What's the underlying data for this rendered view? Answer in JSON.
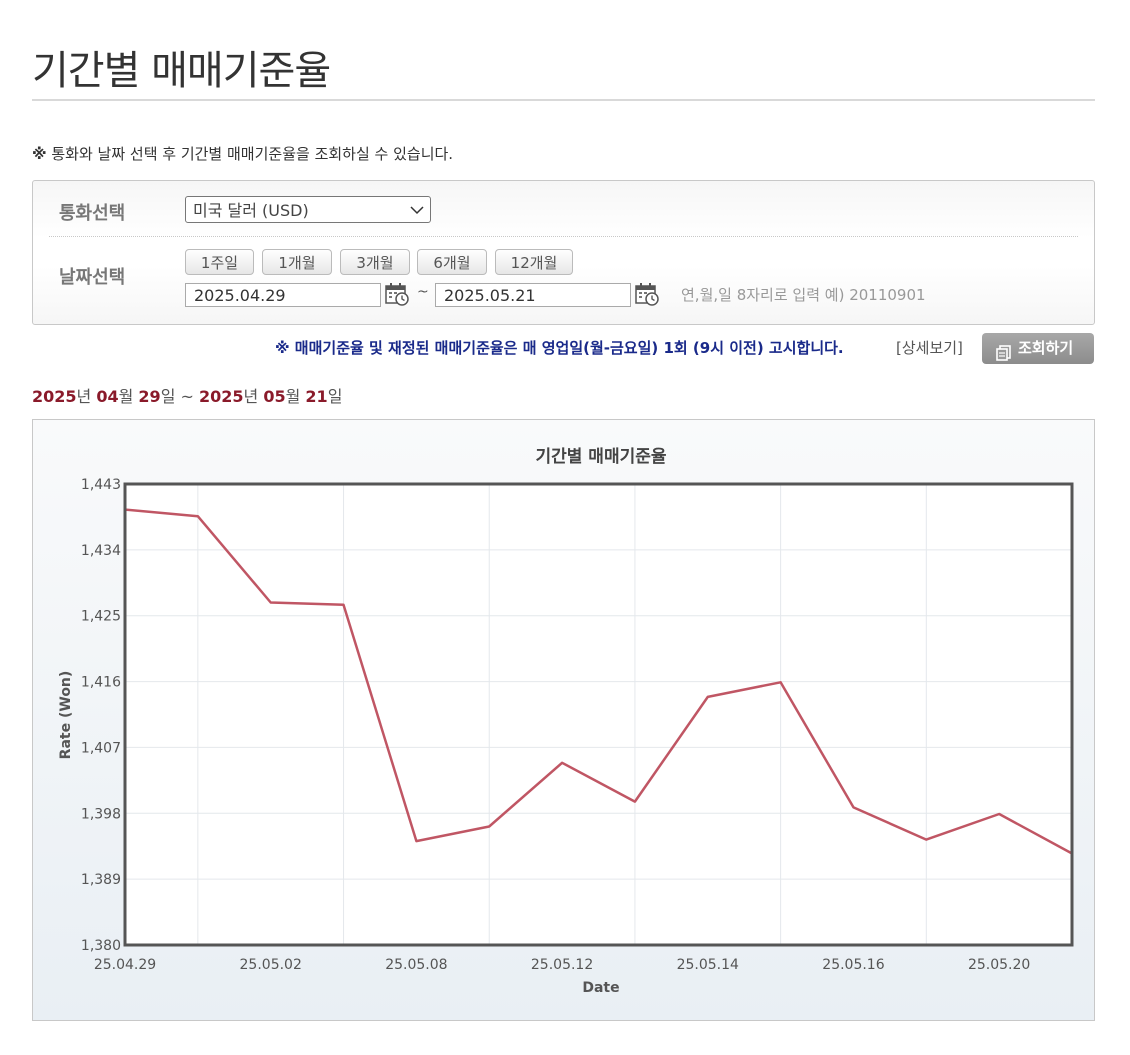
{
  "page": {
    "title": "기간별 매매기준율",
    "notice_mark": "※",
    "notice": " 통화와 날짜 선택 후 기간별 매매기준율을 조회하실 수 있습니다."
  },
  "form": {
    "currency_label": "통화선택",
    "currency_selected": "미국 달러 (USD)",
    "date_label": "날짜선택",
    "period_buttons": [
      "1주일",
      "1개월",
      "3개월",
      "6개월",
      "12개월"
    ],
    "start_date": "2025.04.29",
    "tilde": "~",
    "end_date": "2025.05.21",
    "hint": "연,월,일 8자리로 입력 예) 20110901"
  },
  "actions": {
    "notice": "※ 매매기준율 및 재정된 매매기준율은 매 영업일(월-금요일) 1회 (9시 이전) 고시합니다.",
    "detail_link": "[상세보기]",
    "search_button": "조회하기"
  },
  "range": {
    "y1": "2025",
    "u_year": "년 ",
    "m1": "04",
    "u_month": "월 ",
    "d1": "29",
    "u_day": "일",
    "sep": " ~ ",
    "y2": "2025",
    "m2": "05",
    "d2": "21"
  },
  "colors": {
    "line": "#c05664",
    "accent_date": "#8a1a2a",
    "notice_blue": "#1a2a8a"
  },
  "chart_data": {
    "type": "line",
    "title": "기간별 매매기준율",
    "xlabel": "Date",
    "ylabel": "Rate (Won)",
    "ylim": [
      1380,
      1443
    ],
    "yticks": [
      "1,380",
      "1,389",
      "1,398",
      "1,407",
      "1,416",
      "1,425",
      "1,434",
      "1,443"
    ],
    "ytick_values": [
      1380,
      1389,
      1398,
      1407,
      1416,
      1425,
      1434,
      1443
    ],
    "xtick_labels": [
      "25.04.29",
      "25.05.02",
      "25.05.08",
      "25.05.12",
      "25.05.14",
      "25.05.16",
      "25.05.20"
    ],
    "xtick_index": [
      0,
      2,
      4,
      6,
      8,
      10,
      12
    ],
    "x": [
      "25.04.29",
      "25.04.30",
      "25.05.02",
      "25.05.07",
      "25.05.08",
      "25.05.09",
      "25.05.12",
      "25.05.13",
      "25.05.14",
      "25.05.15",
      "25.05.16",
      "25.05.19",
      "25.05.20",
      "25.05.21"
    ],
    "series": [
      {
        "values": [
          1439.5,
          1438.6,
          1426.8,
          1426.5,
          1394.2,
          1396.2,
          1404.9,
          1399.6,
          1413.9,
          1415.9,
          1398.8,
          1394.4,
          1397.9,
          1392.5
        ]
      }
    ],
    "grid": true
  }
}
